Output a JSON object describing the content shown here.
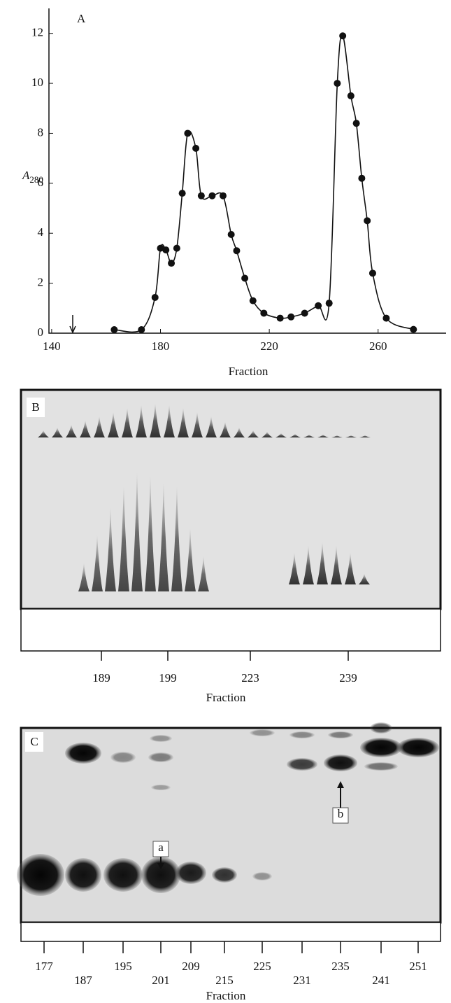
{
  "chart_data": [
    {
      "type": "line",
      "panel": "A",
      "xlabel": "Fraction",
      "ylabel": "A",
      "ylabel_subscript": "280",
      "x": [
        163,
        173,
        178,
        180,
        182,
        184,
        186,
        188,
        190,
        193,
        195,
        199,
        203,
        206,
        208,
        211,
        214,
        218,
        224,
        228,
        233,
        238,
        242,
        245,
        247,
        250,
        252,
        254,
        256,
        258,
        263,
        273
      ],
      "series": [
        {
          "color": "#111111",
          "values": [
            0.14,
            0.14,
            1.43,
            3.4,
            3.33,
            2.8,
            3.4,
            5.6,
            8.0,
            7.4,
            5.5,
            5.5,
            5.5,
            3.95,
            3.3,
            2.2,
            1.3,
            0.8,
            0.6,
            0.65,
            0.8,
            1.1,
            1.2,
            10.0,
            11.9,
            9.5,
            8.4,
            6.2,
            4.5,
            2.4,
            0.6,
            0.15
          ]
        }
      ],
      "xlim": [
        139,
        285
      ],
      "xticks": [
        140,
        180,
        220,
        260
      ],
      "ylim": [
        0,
        13
      ],
      "yticks": [
        0,
        2,
        4,
        6,
        8,
        10,
        12
      ]
    },
    {
      "type": "gel",
      "panel": "B",
      "xlabel": "Fraction",
      "categories": [
        "189",
        "199",
        "223",
        "239"
      ]
    },
    {
      "type": "gel",
      "panel": "C",
      "xlabel": "Fraction",
      "categories": [
        "177",
        "187",
        "195",
        "201",
        "209",
        "215",
        "225",
        "231",
        "235",
        "241",
        "251"
      ],
      "annotations": [
        "a",
        "b"
      ]
    }
  ]
}
